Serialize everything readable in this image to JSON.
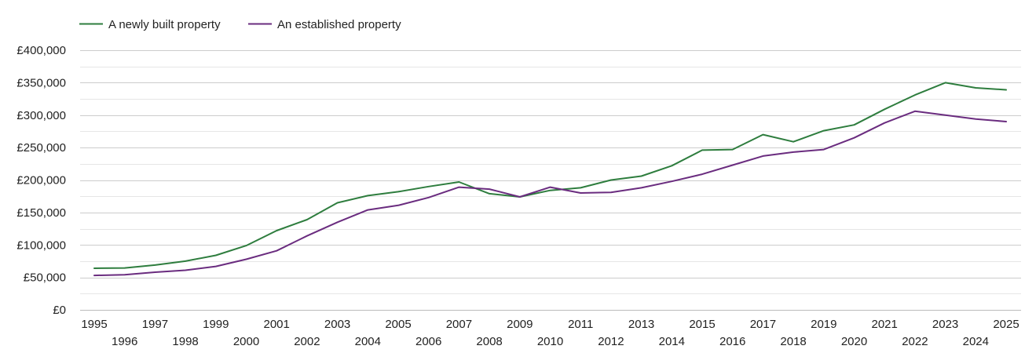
{
  "chart_data": {
    "type": "line",
    "title": "",
    "xlabel": "",
    "ylabel": "",
    "x": [
      1995,
      1996,
      1997,
      1998,
      1999,
      2000,
      2001,
      2002,
      2003,
      2004,
      2005,
      2006,
      2007,
      2008,
      2009,
      2010,
      2011,
      2012,
      2013,
      2014,
      2015,
      2016,
      2017,
      2018,
      2019,
      2020,
      2021,
      2022,
      2023,
      2024,
      2025
    ],
    "x_tick_labels": [
      "1995",
      "1996",
      "1997",
      "1998",
      "1999",
      "2000",
      "2001",
      "2002",
      "2003",
      "2004",
      "2005",
      "2006",
      "2007",
      "2008",
      "2009",
      "2010",
      "2011",
      "2012",
      "2013",
      "2014",
      "2015",
      "2016",
      "2017",
      "2018",
      "2019",
      "2020",
      "2021",
      "2022",
      "2023",
      "2024",
      "2025"
    ],
    "ylim": [
      0,
      400000
    ],
    "y_ticks": [
      0,
      50000,
      100000,
      150000,
      200000,
      250000,
      300000,
      350000,
      400000
    ],
    "y_tick_labels": [
      "£0",
      "£50,000",
      "£100,000",
      "£150,000",
      "£200,000",
      "£250,000",
      "£300,000",
      "£350,000",
      "£400,000"
    ],
    "grid": true,
    "legend_position": "top-left",
    "series": [
      {
        "name": "A newly built property",
        "color": "#2e7d3e",
        "values": [
          64000,
          64500,
          69000,
          75000,
          84000,
          99000,
          122000,
          139000,
          165000,
          176000,
          182000,
          190000,
          197000,
          179000,
          174000,
          184000,
          188000,
          200000,
          206000,
          222000,
          246000,
          247000,
          270000,
          259000,
          276000,
          285000,
          309000,
          331000,
          350000,
          342000,
          339000
        ]
      },
      {
        "name": "An established property",
        "color": "#6a2c7f",
        "values": [
          53000,
          54000,
          58000,
          61000,
          67000,
          78000,
          91000,
          114000,
          135000,
          154000,
          161000,
          173000,
          189000,
          186000,
          174000,
          189000,
          180000,
          181000,
          188000,
          198000,
          209000,
          223000,
          237000,
          243000,
          247000,
          265000,
          288000,
          306000,
          300000,
          294000,
          290000
        ]
      }
    ]
  }
}
